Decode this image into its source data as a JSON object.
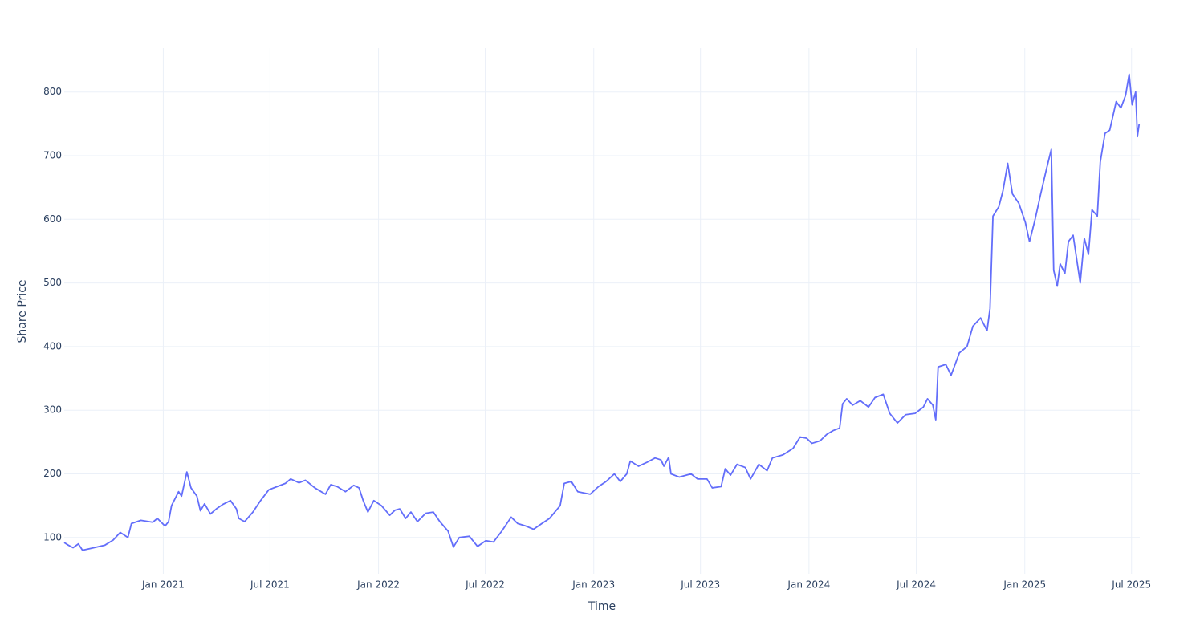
{
  "chart_data": {
    "type": "line",
    "x_label": "Time",
    "y_label": "Share Price",
    "color": "#636efa",
    "grid": true,
    "xlim": [
      "2020-07-17",
      "2025-07-15"
    ],
    "ylim": [
      43,
      869
    ],
    "xticks": [
      {
        "value": "2021-01-01",
        "label": "Jan 2021"
      },
      {
        "value": "2021-07-01",
        "label": "Jul 2021"
      },
      {
        "value": "2022-01-01",
        "label": "Jan 2022"
      },
      {
        "value": "2022-07-01",
        "label": "Jul 2022"
      },
      {
        "value": "2023-01-01",
        "label": "Jan 2023"
      },
      {
        "value": "2023-07-01",
        "label": "Jul 2023"
      },
      {
        "value": "2024-01-01",
        "label": "Jan 2024"
      },
      {
        "value": "2024-07-01",
        "label": "Jul 2024"
      },
      {
        "value": "2025-01-01",
        "label": "Jan 2025"
      },
      {
        "value": "2025-07-01",
        "label": "Jul 2025"
      }
    ],
    "yticks": [
      100,
      200,
      300,
      400,
      500,
      600,
      700,
      800
    ],
    "x": [
      "2020-07-17",
      "2020-07-24",
      "2020-08-01",
      "2020-08-10",
      "2020-08-17",
      "2020-09-01",
      "2020-09-24",
      "2020-10-08",
      "2020-10-20",
      "2020-11-02",
      "2020-11-08",
      "2020-11-24",
      "2020-12-14",
      "2020-12-22",
      "2021-01-04",
      "2021-01-10",
      "2021-01-15",
      "2021-01-27",
      "2021-02-01",
      "2021-02-10",
      "2021-02-17",
      "2021-02-27",
      "2021-03-05",
      "2021-03-12",
      "2021-03-22",
      "2021-04-01",
      "2021-04-12",
      "2021-04-25",
      "2021-05-05",
      "2021-05-09",
      "2021-05-19",
      "2021-06-02",
      "2021-06-15",
      "2021-06-29",
      "2021-07-13",
      "2021-07-27",
      "2021-08-05",
      "2021-08-19",
      "2021-08-30",
      "2021-09-15",
      "2021-10-03",
      "2021-10-12",
      "2021-10-23",
      "2021-11-06",
      "2021-11-20",
      "2021-11-29",
      "2021-12-06",
      "2021-12-14",
      "2021-12-24",
      "2022-01-06",
      "2022-01-20",
      "2022-01-29",
      "2022-02-06",
      "2022-02-16",
      "2022-02-25",
      "2022-03-08",
      "2022-03-22",
      "2022-04-04",
      "2022-04-15",
      "2022-04-29",
      "2022-05-08",
      "2022-05-18",
      "2022-06-04",
      "2022-06-18",
      "2022-07-02",
      "2022-07-15",
      "2022-07-29",
      "2022-08-14",
      "2022-08-25",
      "2022-09-08",
      "2022-09-21",
      "2022-10-05",
      "2022-10-18",
      "2022-11-05",
      "2022-11-12",
      "2022-11-24",
      "2022-12-05",
      "2022-12-26",
      "2023-01-09",
      "2023-01-22",
      "2023-02-05",
      "2023-02-15",
      "2023-02-26",
      "2023-03-04",
      "2023-03-18",
      "2023-04-01",
      "2023-04-15",
      "2023-04-25",
      "2023-04-30",
      "2023-05-08",
      "2023-05-12",
      "2023-05-26",
      "2023-06-15",
      "2023-06-26",
      "2023-07-12",
      "2023-07-21",
      "2023-08-05",
      "2023-08-12",
      "2023-08-21",
      "2023-09-01",
      "2023-09-15",
      "2023-09-24",
      "2023-10-08",
      "2023-10-22",
      "2023-10-31",
      "2023-11-18",
      "2023-12-05",
      "2023-12-17",
      "2023-12-28",
      "2024-01-06",
      "2024-01-20",
      "2024-01-31",
      "2024-02-11",
      "2024-02-22",
      "2024-02-27",
      "2024-03-05",
      "2024-03-15",
      "2024-03-28",
      "2024-04-11",
      "2024-04-22",
      "2024-05-06",
      "2024-05-17",
      "2024-05-30",
      "2024-06-13",
      "2024-06-29",
      "2024-07-13",
      "2024-07-20",
      "2024-07-29",
      "2024-08-03",
      "2024-08-07",
      "2024-08-20",
      "2024-08-29",
      "2024-09-12",
      "2024-09-25",
      "2024-10-05",
      "2024-10-18",
      "2024-10-29",
      "2024-11-03",
      "2024-11-08",
      "2024-11-18",
      "2024-11-25",
      "2024-12-03",
      "2024-12-11",
      "2024-12-22",
      "2025-01-02",
      "2025-01-09",
      "2025-01-18",
      "2025-01-28",
      "2025-02-07",
      "2025-02-15",
      "2025-02-19",
      "2025-02-25",
      "2025-03-02",
      "2025-03-10",
      "2025-03-16",
      "2025-03-24",
      "2025-04-01",
      "2025-04-05",
      "2025-04-12",
      "2025-04-19",
      "2025-04-25",
      "2025-05-04",
      "2025-05-09",
      "2025-05-17",
      "2025-05-25",
      "2025-06-05",
      "2025-06-13",
      "2025-06-21",
      "2025-06-27",
      "2025-07-02",
      "2025-07-08",
      "2025-07-11",
      "2025-07-14"
    ],
    "values": [
      92,
      88,
      84,
      90,
      80,
      83,
      88,
      96,
      108,
      100,
      122,
      127,
      124,
      130,
      118,
      125,
      150,
      172,
      165,
      203,
      178,
      165,
      142,
      153,
      137,
      145,
      152,
      158,
      145,
      130,
      125,
      140,
      158,
      175,
      180,
      185,
      192,
      186,
      190,
      178,
      168,
      183,
      180,
      172,
      182,
      178,
      158,
      140,
      158,
      150,
      135,
      143,
      145,
      130,
      140,
      125,
      138,
      140,
      125,
      110,
      85,
      100,
      102,
      86,
      95,
      93,
      110,
      132,
      122,
      118,
      113,
      122,
      130,
      150,
      185,
      188,
      172,
      168,
      180,
      188,
      200,
      188,
      200,
      220,
      212,
      218,
      225,
      222,
      212,
      226,
      200,
      195,
      200,
      192,
      192,
      178,
      180,
      208,
      198,
      215,
      210,
      192,
      215,
      205,
      225,
      230,
      240,
      258,
      256,
      248,
      252,
      262,
      268,
      272,
      310,
      318,
      308,
      315,
      305,
      320,
      325,
      295,
      280,
      293,
      295,
      305,
      318,
      308,
      285,
      368,
      372,
      355,
      390,
      400,
      432,
      445,
      425,
      460,
      605,
      620,
      645,
      688,
      640,
      625,
      595,
      565,
      598,
      640,
      680,
      710,
      520,
      495,
      530,
      515,
      565,
      575,
      525,
      500,
      570,
      545,
      615,
      605,
      690,
      735,
      740,
      785,
      775,
      795,
      828,
      780,
      800,
      730,
      750
    ]
  }
}
